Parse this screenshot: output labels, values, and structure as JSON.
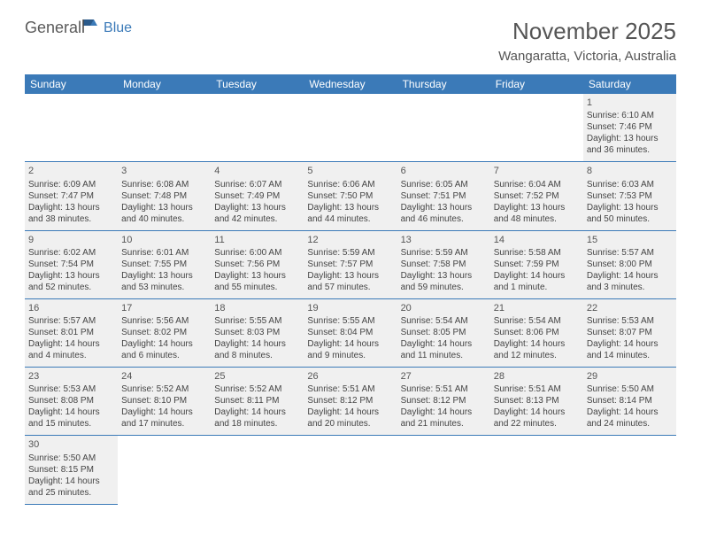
{
  "logo": {
    "general": "General",
    "blue": "Blue"
  },
  "title": "November 2025",
  "location": "Wangaratta, Victoria, Australia",
  "colors": {
    "header_bg": "#3b7ab8",
    "header_text": "#ffffff",
    "daycell_shade": "#f0f0f0",
    "border": "#3b7ab8",
    "text": "#444444"
  },
  "days": [
    "Sunday",
    "Monday",
    "Tuesday",
    "Wednesday",
    "Thursday",
    "Friday",
    "Saturday"
  ],
  "weeks": [
    [
      null,
      null,
      null,
      null,
      null,
      null,
      {
        "n": "1",
        "sr": "Sunrise: 6:10 AM",
        "ss": "Sunset: 7:46 PM",
        "dl": "Daylight: 13 hours and 36 minutes."
      }
    ],
    [
      {
        "n": "2",
        "sr": "Sunrise: 6:09 AM",
        "ss": "Sunset: 7:47 PM",
        "dl": "Daylight: 13 hours and 38 minutes."
      },
      {
        "n": "3",
        "sr": "Sunrise: 6:08 AM",
        "ss": "Sunset: 7:48 PM",
        "dl": "Daylight: 13 hours and 40 minutes."
      },
      {
        "n": "4",
        "sr": "Sunrise: 6:07 AM",
        "ss": "Sunset: 7:49 PM",
        "dl": "Daylight: 13 hours and 42 minutes."
      },
      {
        "n": "5",
        "sr": "Sunrise: 6:06 AM",
        "ss": "Sunset: 7:50 PM",
        "dl": "Daylight: 13 hours and 44 minutes."
      },
      {
        "n": "6",
        "sr": "Sunrise: 6:05 AM",
        "ss": "Sunset: 7:51 PM",
        "dl": "Daylight: 13 hours and 46 minutes."
      },
      {
        "n": "7",
        "sr": "Sunrise: 6:04 AM",
        "ss": "Sunset: 7:52 PM",
        "dl": "Daylight: 13 hours and 48 minutes."
      },
      {
        "n": "8",
        "sr": "Sunrise: 6:03 AM",
        "ss": "Sunset: 7:53 PM",
        "dl": "Daylight: 13 hours and 50 minutes."
      }
    ],
    [
      {
        "n": "9",
        "sr": "Sunrise: 6:02 AM",
        "ss": "Sunset: 7:54 PM",
        "dl": "Daylight: 13 hours and 52 minutes."
      },
      {
        "n": "10",
        "sr": "Sunrise: 6:01 AM",
        "ss": "Sunset: 7:55 PM",
        "dl": "Daylight: 13 hours and 53 minutes."
      },
      {
        "n": "11",
        "sr": "Sunrise: 6:00 AM",
        "ss": "Sunset: 7:56 PM",
        "dl": "Daylight: 13 hours and 55 minutes."
      },
      {
        "n": "12",
        "sr": "Sunrise: 5:59 AM",
        "ss": "Sunset: 7:57 PM",
        "dl": "Daylight: 13 hours and 57 minutes."
      },
      {
        "n": "13",
        "sr": "Sunrise: 5:59 AM",
        "ss": "Sunset: 7:58 PM",
        "dl": "Daylight: 13 hours and 59 minutes."
      },
      {
        "n": "14",
        "sr": "Sunrise: 5:58 AM",
        "ss": "Sunset: 7:59 PM",
        "dl": "Daylight: 14 hours and 1 minute."
      },
      {
        "n": "15",
        "sr": "Sunrise: 5:57 AM",
        "ss": "Sunset: 8:00 PM",
        "dl": "Daylight: 14 hours and 3 minutes."
      }
    ],
    [
      {
        "n": "16",
        "sr": "Sunrise: 5:57 AM",
        "ss": "Sunset: 8:01 PM",
        "dl": "Daylight: 14 hours and 4 minutes."
      },
      {
        "n": "17",
        "sr": "Sunrise: 5:56 AM",
        "ss": "Sunset: 8:02 PM",
        "dl": "Daylight: 14 hours and 6 minutes."
      },
      {
        "n": "18",
        "sr": "Sunrise: 5:55 AM",
        "ss": "Sunset: 8:03 PM",
        "dl": "Daylight: 14 hours and 8 minutes."
      },
      {
        "n": "19",
        "sr": "Sunrise: 5:55 AM",
        "ss": "Sunset: 8:04 PM",
        "dl": "Daylight: 14 hours and 9 minutes."
      },
      {
        "n": "20",
        "sr": "Sunrise: 5:54 AM",
        "ss": "Sunset: 8:05 PM",
        "dl": "Daylight: 14 hours and 11 minutes."
      },
      {
        "n": "21",
        "sr": "Sunrise: 5:54 AM",
        "ss": "Sunset: 8:06 PM",
        "dl": "Daylight: 14 hours and 12 minutes."
      },
      {
        "n": "22",
        "sr": "Sunrise: 5:53 AM",
        "ss": "Sunset: 8:07 PM",
        "dl": "Daylight: 14 hours and 14 minutes."
      }
    ],
    [
      {
        "n": "23",
        "sr": "Sunrise: 5:53 AM",
        "ss": "Sunset: 8:08 PM",
        "dl": "Daylight: 14 hours and 15 minutes."
      },
      {
        "n": "24",
        "sr": "Sunrise: 5:52 AM",
        "ss": "Sunset: 8:10 PM",
        "dl": "Daylight: 14 hours and 17 minutes."
      },
      {
        "n": "25",
        "sr": "Sunrise: 5:52 AM",
        "ss": "Sunset: 8:11 PM",
        "dl": "Daylight: 14 hours and 18 minutes."
      },
      {
        "n": "26",
        "sr": "Sunrise: 5:51 AM",
        "ss": "Sunset: 8:12 PM",
        "dl": "Daylight: 14 hours and 20 minutes."
      },
      {
        "n": "27",
        "sr": "Sunrise: 5:51 AM",
        "ss": "Sunset: 8:12 PM",
        "dl": "Daylight: 14 hours and 21 minutes."
      },
      {
        "n": "28",
        "sr": "Sunrise: 5:51 AM",
        "ss": "Sunset: 8:13 PM",
        "dl": "Daylight: 14 hours and 22 minutes."
      },
      {
        "n": "29",
        "sr": "Sunrise: 5:50 AM",
        "ss": "Sunset: 8:14 PM",
        "dl": "Daylight: 14 hours and 24 minutes."
      }
    ],
    [
      {
        "n": "30",
        "sr": "Sunrise: 5:50 AM",
        "ss": "Sunset: 8:15 PM",
        "dl": "Daylight: 14 hours and 25 minutes."
      },
      null,
      null,
      null,
      null,
      null,
      null
    ]
  ]
}
